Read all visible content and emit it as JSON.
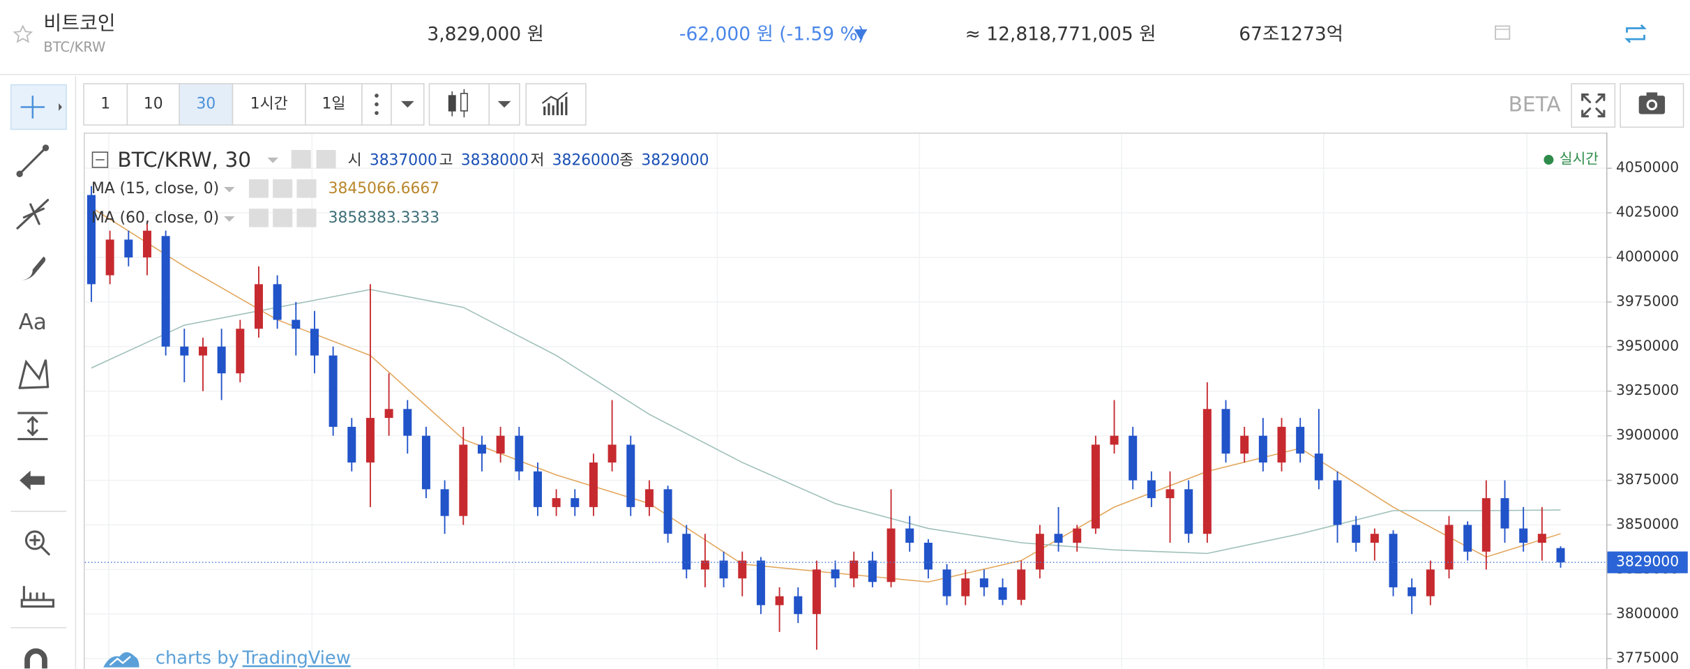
{
  "header": {
    "name": "비트코인",
    "pair": "BTC/KRW",
    "price": "3,829,000 원",
    "change": "-62,000 원 (-1.59 %)",
    "volume_krw": "≈ 12,818,771,005 원",
    "market_cap": "67조1273억"
  },
  "toolbar": {
    "intervals": [
      "1",
      "10",
      "30",
      "1시간",
      "1일"
    ],
    "beta": "BETA"
  },
  "chart_data": {
    "type": "candlestick",
    "title": "BTC/KRW, 30",
    "realtime": "실시간",
    "ohlc_labels": [
      "시",
      "고",
      "저",
      "종"
    ],
    "up_color": "#c62a2f",
    "down_color": "#2153c9",
    "open": [
      4035000,
      3990000,
      4010000,
      4000000,
      4012000,
      3950000,
      3945000,
      3950000,
      3935000,
      3960000,
      3985000,
      3965000,
      3960000,
      3945000,
      3905000,
      3885000,
      3910000,
      3915000,
      3900000,
      3870000,
      3855000,
      3895000,
      3890000,
      3900000,
      3880000,
      3860000,
      3865000,
      3860000,
      3885000,
      3895000,
      3860000,
      3870000,
      3845000,
      3825000,
      3830000,
      3820000,
      3830000,
      3805000,
      3810000,
      3800000,
      3825000,
      3820000,
      3830000,
      3818000,
      3848000,
      3840000,
      3825000,
      3810000,
      3820000,
      3815000,
      3808000,
      3825000,
      3845000,
      3840000,
      3848000,
      3895000,
      3900000,
      3875000,
      3865000,
      3870000,
      3845000,
      3915000,
      3890000,
      3900000,
      3885000,
      3905000,
      3890000,
      3875000,
      3850000,
      3840000,
      3845000,
      3815000,
      3810000,
      3825000,
      3850000,
      3835000,
      3865000,
      3848000,
      3840000,
      3837000
    ],
    "high": [
      4040000,
      4015000,
      4015000,
      4020000,
      4015000,
      3960000,
      3955000,
      3960000,
      3965000,
      3995000,
      3990000,
      3975000,
      3970000,
      3950000,
      3910000,
      3985000,
      3935000,
      3920000,
      3905000,
      3875000,
      3905000,
      3900000,
      3905000,
      3905000,
      3885000,
      3870000,
      3870000,
      3890000,
      3920000,
      3900000,
      3875000,
      3872000,
      3850000,
      3845000,
      3835000,
      3835000,
      3832000,
      3815000,
      3815000,
      3830000,
      3830000,
      3835000,
      3835000,
      3870000,
      3855000,
      3842000,
      3828000,
      3825000,
      3825000,
      3820000,
      3830000,
      3850000,
      3860000,
      3850000,
      3900000,
      3920000,
      3905000,
      3880000,
      3880000,
      3875000,
      3930000,
      3920000,
      3905000,
      3910000,
      3910000,
      3910000,
      3915000,
      3880000,
      3855000,
      3848000,
      3847000,
      3820000,
      3830000,
      3855000,
      3852000,
      3875000,
      3875000,
      3860000,
      3860000,
      3838000
    ],
    "low": [
      3975000,
      3985000,
      3995000,
      3990000,
      3945000,
      3930000,
      3925000,
      3920000,
      3930000,
      3955000,
      3960000,
      3945000,
      3935000,
      3900000,
      3880000,
      3860000,
      3900000,
      3890000,
      3865000,
      3845000,
      3850000,
      3880000,
      3885000,
      3875000,
      3855000,
      3855000,
      3855000,
      3855000,
      3880000,
      3855000,
      3855000,
      3840000,
      3820000,
      3815000,
      3815000,
      3810000,
      3800000,
      3790000,
      3795000,
      3780000,
      3815000,
      3815000,
      3815000,
      3815000,
      3835000,
      3820000,
      3805000,
      3805000,
      3810000,
      3805000,
      3805000,
      3820000,
      3835000,
      3835000,
      3845000,
      3890000,
      3870000,
      3860000,
      3840000,
      3840000,
      3840000,
      3885000,
      3885000,
      3880000,
      3880000,
      3885000,
      3870000,
      3840000,
      3835000,
      3830000,
      3810000,
      3800000,
      3805000,
      3820000,
      3830000,
      3825000,
      3840000,
      3835000,
      3830000,
      3826000
    ],
    "close": [
      3985000,
      4010000,
      4000000,
      4015000,
      3950000,
      3945000,
      3950000,
      3935000,
      3960000,
      3985000,
      3965000,
      3960000,
      3945000,
      3905000,
      3885000,
      3910000,
      3915000,
      3900000,
      3870000,
      3855000,
      3895000,
      3890000,
      3900000,
      3880000,
      3860000,
      3865000,
      3860000,
      3885000,
      3895000,
      3860000,
      3870000,
      3845000,
      3825000,
      3830000,
      3820000,
      3830000,
      3805000,
      3810000,
      3800000,
      3825000,
      3820000,
      3830000,
      3818000,
      3848000,
      3840000,
      3825000,
      3810000,
      3820000,
      3815000,
      3808000,
      3825000,
      3845000,
      3840000,
      3848000,
      3895000,
      3900000,
      3875000,
      3865000,
      3870000,
      3845000,
      3915000,
      3890000,
      3900000,
      3885000,
      3905000,
      3890000,
      3875000,
      3850000,
      3840000,
      3845000,
      3815000,
      3810000,
      3825000,
      3850000,
      3835000,
      3865000,
      3848000,
      3840000,
      3845000,
      3829000
    ],
    "series": [
      {
        "name": "MA (15, close, 0)",
        "color": "#e2a55a",
        "label_color": "#b8862b",
        "x": [
          0,
          5,
          10,
          15,
          20,
          25,
          30,
          35,
          40,
          45,
          50,
          55,
          60,
          65,
          70,
          75,
          79
        ],
        "values": [
          4028000,
          3995000,
          3965000,
          3945000,
          3898000,
          3878000,
          3862000,
          3828000,
          3823000,
          3818000,
          3830000,
          3860000,
          3880000,
          3893000,
          3860000,
          3832000,
          3845066.6667
        ]
      },
      {
        "name": "MA (60, close, 0)",
        "color": "#9dbfb8",
        "label_color": "#3f6f78",
        "x": [
          0,
          5,
          10,
          15,
          20,
          25,
          30,
          35,
          40,
          45,
          50,
          55,
          60,
          65,
          70,
          75,
          79
        ],
        "values": [
          3938000,
          3962000,
          3972000,
          3982000,
          3972000,
          3945000,
          3912000,
          3885000,
          3862000,
          3848000,
          3840000,
          3836000,
          3834000,
          3845000,
          3858000,
          3858000,
          3858383.3333
        ]
      }
    ],
    "ylim": [
      3769500,
      4070000
    ],
    "yticks": [
      3775000,
      3800000,
      3825000,
      3850000,
      3875000,
      3900000,
      3925000,
      3950000,
      3975000,
      4000000,
      4025000,
      4050000
    ],
    "grid": true
  },
  "footer": {
    "prefix": "charts by",
    "brand": "TradingView"
  }
}
